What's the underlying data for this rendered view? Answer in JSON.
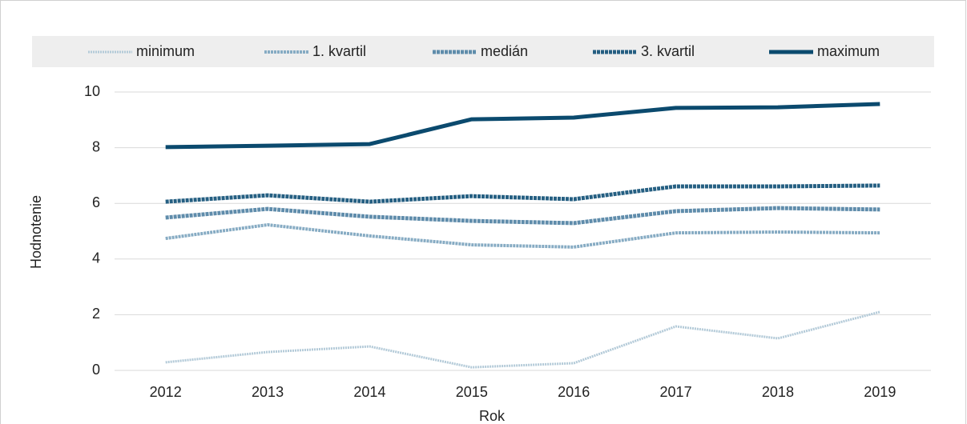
{
  "chart_data": {
    "type": "line",
    "x_label": "Rok",
    "y_label": "Hodnotenie",
    "categories": [
      "2012",
      "2013",
      "2014",
      "2015",
      "2016",
      "2017",
      "2018",
      "2019"
    ],
    "series": [
      {
        "name": "minimum",
        "color": "#b3cad8",
        "values": [
          0.29,
          0.66,
          0.86,
          0.11,
          0.26,
          1.58,
          1.15,
          2.1
        ]
      },
      {
        "name": "1. kvartil",
        "color": "#86abc3",
        "values": [
          4.74,
          5.23,
          4.83,
          4.51,
          4.43,
          4.94,
          4.97,
          4.94
        ]
      },
      {
        "name": "medián",
        "color": "#5f8cab",
        "values": [
          5.49,
          5.8,
          5.52,
          5.37,
          5.29,
          5.72,
          5.83,
          5.78
        ]
      },
      {
        "name": "3. kvartil",
        "color": "#255f82",
        "values": [
          6.06,
          6.29,
          6.06,
          6.26,
          6.15,
          6.61,
          6.61,
          6.64
        ]
      },
      {
        "name": "maximum",
        "color": "#0b4a6e",
        "values": [
          8.02,
          8.07,
          8.13,
          9.02,
          9.08,
          9.43,
          9.45,
          9.57
        ]
      }
    ],
    "ylim": [
      0,
      10
    ],
    "yticks": [
      0,
      2,
      4,
      6,
      8,
      10
    ],
    "grid": true,
    "legend": "top"
  }
}
